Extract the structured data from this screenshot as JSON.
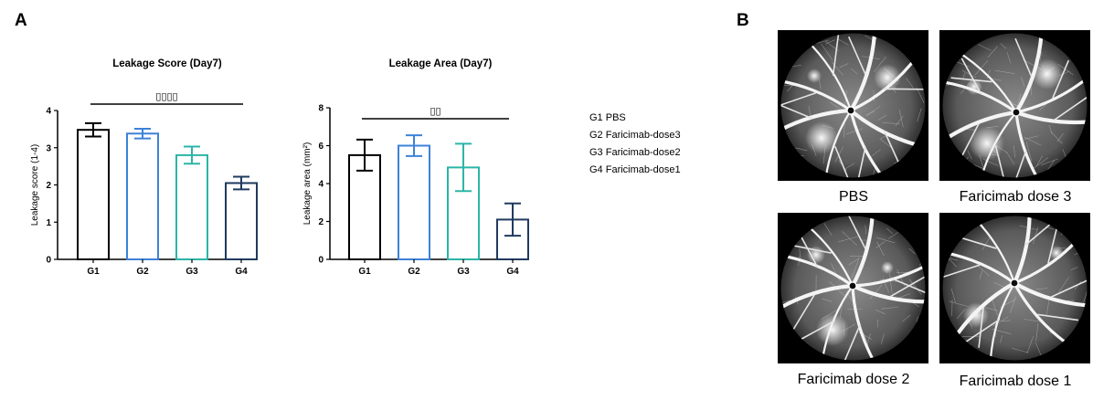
{
  "panels": {
    "a": "A",
    "b": "B"
  },
  "chart_data": [
    {
      "type": "bar",
      "title": "Leakage Score (Day7)",
      "ylabel": "Leakage score (1-4)",
      "xlabel": "",
      "categories": [
        "G1",
        "G2",
        "G3",
        "G4"
      ],
      "values": [
        3.48,
        3.38,
        2.8,
        2.05
      ],
      "errors": [
        0.18,
        0.13,
        0.23,
        0.17
      ],
      "ylim": [
        0,
        4
      ],
      "yticks": [
        "0",
        "1",
        "2",
        "3",
        "4"
      ],
      "significance": "▯▯▯▯",
      "colors": [
        "#000000",
        "#3d82d8",
        "#2bb5a8",
        "#1f3a5f"
      ]
    },
    {
      "type": "bar",
      "title": "Leakage Area (Day7)",
      "ylabel": "Leakage area (mm²)",
      "xlabel": "",
      "categories": [
        "G1",
        "G2",
        "G3",
        "G4"
      ],
      "values": [
        5.5,
        6.0,
        4.85,
        2.1
      ],
      "errors": [
        0.82,
        0.55,
        1.25,
        0.85
      ],
      "ylim": [
        0,
        8
      ],
      "yticks": [
        "0",
        "2",
        "4",
        "6",
        "8"
      ],
      "significance": "▯▯",
      "colors": [
        "#000000",
        "#3d82d8",
        "#2bb5a8",
        "#1f3a5f"
      ]
    }
  ],
  "legend": [
    "G1 PBS",
    "G2 Faricimab-dose3",
    "G3 Faricimab-dose2",
    "G4 Faricimab-dose1"
  ],
  "images": [
    {
      "label": "PBS",
      "icon": "fundus-angiogram"
    },
    {
      "label": "Faricimab dose 3",
      "icon": "fundus-angiogram"
    },
    {
      "label": "Faricimab dose 2",
      "icon": "fundus-angiogram"
    },
    {
      "label": "Faricimab dose 1",
      "icon": "fundus-angiogram"
    }
  ]
}
